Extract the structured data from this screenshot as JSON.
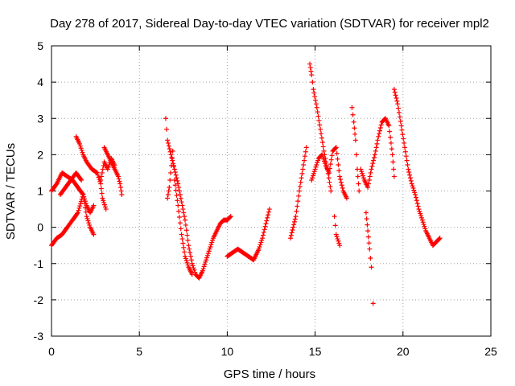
{
  "chart_data": {
    "type": "scatter",
    "title": "Day 278 of 2017, Sidereal Day-to-day VTEC variation (SDTVAR) for receiver mpl2",
    "xlabel": "GPS time / hours",
    "ylabel": "SDTVAR / TECUs",
    "xlim": [
      0,
      25
    ],
    "ylim": [
      -3,
      5
    ],
    "xticks": [
      "0",
      "5",
      "10",
      "15",
      "20",
      "25"
    ],
    "yticks": [
      "-3",
      "-2",
      "-1",
      "0",
      "1",
      "2",
      "3",
      "4",
      "5"
    ],
    "grid": true,
    "marker": "+",
    "color": "#ff0000",
    "series": [
      {
        "name": "SDTVAR",
        "segments": [
          [
            [
              0.0,
              1.0
            ],
            [
              0.3,
              1.2
            ],
            [
              0.6,
              1.5
            ],
            [
              0.9,
              1.4
            ],
            [
              1.2,
              1.3
            ],
            [
              1.5,
              1.1
            ],
            [
              1.8,
              0.9
            ],
            [
              2.0,
              0.6
            ],
            [
              2.2,
              0.4
            ],
            [
              2.4,
              0.6
            ]
          ],
          [
            [
              0.0,
              -0.5
            ],
            [
              0.3,
              -0.3
            ],
            [
              0.6,
              -0.2
            ],
            [
              0.9,
              0.0
            ],
            [
              1.2,
              0.2
            ],
            [
              1.5,
              0.4
            ],
            [
              1.8,
              0.9
            ],
            [
              2.0,
              0.3
            ],
            [
              2.2,
              0.0
            ],
            [
              2.4,
              -0.2
            ]
          ],
          [
            [
              0.5,
              0.9
            ],
            [
              0.8,
              1.1
            ],
            [
              1.1,
              1.3
            ],
            [
              1.4,
              1.5
            ],
            [
              1.7,
              1.3
            ]
          ],
          [
            [
              1.4,
              2.5
            ],
            [
              1.6,
              2.3
            ],
            [
              1.8,
              2.0
            ],
            [
              2.0,
              1.8
            ],
            [
              2.3,
              1.6
            ],
            [
              2.6,
              1.5
            ],
            [
              2.8,
              1.2
            ],
            [
              2.9,
              0.8
            ],
            [
              3.1,
              0.5
            ]
          ],
          [
            [
              3.0,
              2.2
            ],
            [
              3.2,
              2.0
            ],
            [
              3.4,
              1.8
            ],
            [
              3.6,
              1.6
            ],
            [
              3.8,
              1.4
            ],
            [
              3.9,
              1.2
            ],
            [
              4.0,
              0.9
            ]
          ],
          [
            [
              2.8,
              1.3
            ],
            [
              3.0,
              1.8
            ],
            [
              3.2,
              1.6
            ],
            [
              3.4,
              1.9
            ],
            [
              3.6,
              1.7
            ]
          ],
          [
            [
              6.5,
              3.0
            ],
            [
              6.6,
              2.4
            ],
            [
              6.8,
              2.0
            ],
            [
              7.0,
              1.6
            ],
            [
              7.2,
              1.2
            ],
            [
              7.4,
              0.7
            ],
            [
              7.6,
              0.2
            ],
            [
              7.8,
              -0.5
            ],
            [
              8.0,
              -1.0
            ],
            [
              8.2,
              -1.3
            ],
            [
              8.4,
              -1.4
            ],
            [
              8.6,
              -1.2
            ],
            [
              8.8,
              -0.9
            ],
            [
              9.0,
              -0.6
            ],
            [
              9.2,
              -0.3
            ],
            [
              9.4,
              -0.1
            ],
            [
              9.6,
              0.1
            ],
            [
              9.8,
              0.2
            ],
            [
              10.0,
              0.2
            ],
            [
              10.2,
              0.3
            ]
          ],
          [
            [
              6.6,
              0.8
            ],
            [
              6.7,
              1.1
            ],
            [
              6.9,
              2.1
            ],
            [
              7.0,
              1.3
            ],
            [
              7.2,
              0.6
            ],
            [
              7.4,
              -0.2
            ],
            [
              7.6,
              -0.8
            ],
            [
              7.8,
              -1.1
            ],
            [
              8.0,
              -1.3
            ]
          ],
          [
            [
              10.0,
              -0.8
            ],
            [
              10.3,
              -0.7
            ],
            [
              10.6,
              -0.6
            ],
            [
              10.9,
              -0.7
            ],
            [
              11.2,
              -0.8
            ],
            [
              11.5,
              -0.9
            ],
            [
              11.8,
              -0.6
            ],
            [
              12.0,
              -0.3
            ],
            [
              12.2,
              0.1
            ],
            [
              12.4,
              0.5
            ]
          ],
          [
            [
              13.6,
              -0.3
            ],
            [
              13.9,
              0.3
            ],
            [
              14.1,
              1.0
            ],
            [
              14.3,
              1.6
            ],
            [
              14.5,
              2.2
            ]
          ],
          [
            [
              14.7,
              4.5
            ],
            [
              14.8,
              4.2
            ],
            [
              14.9,
              3.8
            ],
            [
              15.1,
              3.3
            ],
            [
              15.3,
              2.7
            ],
            [
              15.5,
              2.1
            ],
            [
              15.7,
              1.6
            ],
            [
              15.9,
              1.0
            ]
          ],
          [
            [
              14.8,
              1.3
            ],
            [
              15.0,
              1.6
            ],
            [
              15.2,
              1.9
            ],
            [
              15.4,
              2.0
            ],
            [
              15.6,
              1.7
            ],
            [
              15.8,
              1.5
            ],
            [
              16.0,
              2.1
            ],
            [
              16.2,
              2.2
            ],
            [
              16.4,
              1.4
            ],
            [
              16.6,
              1.0
            ],
            [
              16.8,
              0.8
            ]
          ],
          [
            [
              16.1,
              0.3
            ],
            [
              16.2,
              -0.2
            ],
            [
              16.4,
              -0.5
            ]
          ],
          [
            [
              17.1,
              3.3
            ],
            [
              17.2,
              2.9
            ],
            [
              17.3,
              2.4
            ],
            [
              17.4,
              1.6
            ],
            [
              17.5,
              1.0
            ]
          ],
          [
            [
              17.6,
              1.6
            ],
            [
              17.8,
              1.3
            ],
            [
              18.0,
              1.1
            ],
            [
              18.2,
              1.6
            ],
            [
              18.4,
              2.0
            ],
            [
              18.6,
              2.5
            ],
            [
              18.8,
              2.9
            ],
            [
              19.0,
              3.0
            ],
            [
              19.2,
              2.8
            ],
            [
              19.4,
              2.0
            ],
            [
              19.5,
              1.4
            ]
          ],
          [
            [
              17.9,
              0.4
            ],
            [
              18.0,
              -0.1
            ],
            [
              18.1,
              -0.6
            ],
            [
              18.2,
              -1.1
            ]
          ],
          [
            [
              18.3,
              -2.1
            ]
          ],
          [
            [
              19.5,
              3.8
            ],
            [
              19.7,
              3.4
            ],
            [
              19.9,
              2.8
            ],
            [
              20.1,
              2.2
            ],
            [
              20.3,
              1.6
            ],
            [
              20.5,
              1.2
            ],
            [
              20.7,
              0.9
            ],
            [
              20.9,
              0.5
            ],
            [
              21.1,
              0.2
            ],
            [
              21.3,
              -0.1
            ],
            [
              21.5,
              -0.3
            ],
            [
              21.7,
              -0.5
            ],
            [
              21.9,
              -0.4
            ],
            [
              22.1,
              -0.3
            ]
          ]
        ]
      }
    ]
  }
}
